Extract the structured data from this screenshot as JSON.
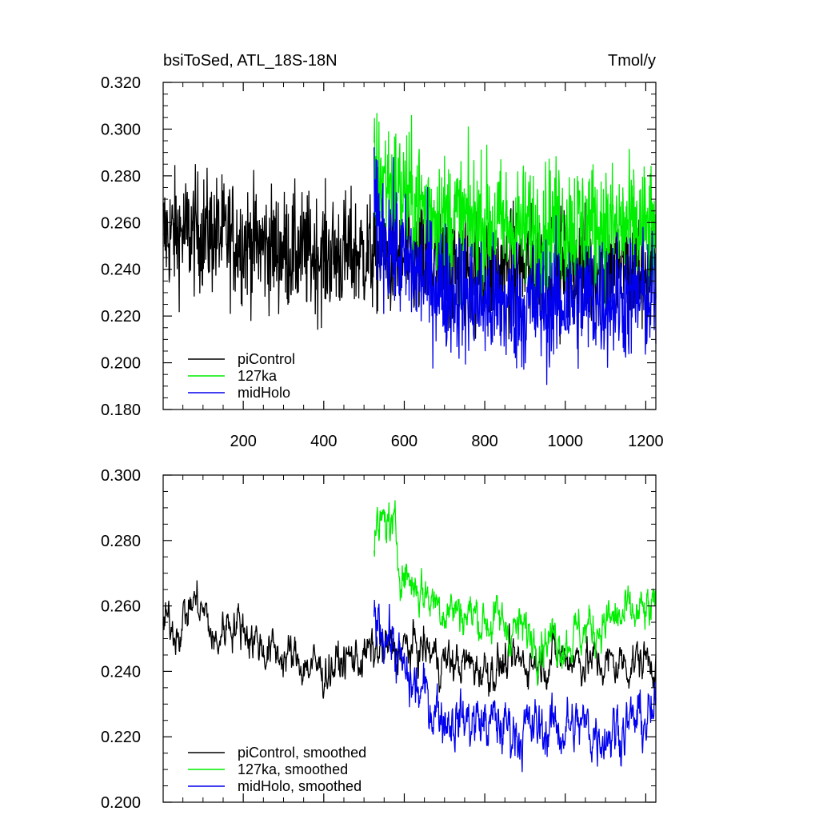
{
  "chart_data": [
    {
      "type": "line",
      "title": "bsiToSed, ATL_18S-18N",
      "units": "Tmol/y",
      "xlim": [
        1,
        1225
      ],
      "ylim": [
        0.18,
        0.32
      ],
      "yticks": [
        "0.180",
        "0.200",
        "0.220",
        "0.240",
        "0.260",
        "0.280",
        "0.300",
        "0.320"
      ],
      "xticks": [
        "200",
        "400",
        "600",
        "800",
        "1000",
        "1200"
      ],
      "legend_position": "lower-left",
      "series": [
        {
          "name": "piControl",
          "color": "#000000",
          "x_range": [
            1,
            1225
          ],
          "mean": [
            [
              1,
              0.255
            ],
            [
              100,
              0.256
            ],
            [
              200,
              0.252
            ],
            [
              300,
              0.248
            ],
            [
              400,
              0.246
            ],
            [
              530,
              0.247
            ],
            [
              700,
              0.24
            ],
            [
              900,
              0.24
            ],
            [
              1100,
              0.24
            ],
            [
              1225,
              0.24
            ]
          ],
          "noise": 0.013
        },
        {
          "name": "127ka",
          "color": "#00ee00",
          "x_range": [
            525,
            1225
          ],
          "mean": [
            [
              525,
              0.282
            ],
            [
              600,
              0.272
            ],
            [
              700,
              0.262
            ],
            [
              800,
              0.26
            ],
            [
              900,
              0.257
            ],
            [
              1000,
              0.26
            ],
            [
              1100,
              0.258
            ],
            [
              1225,
              0.257
            ]
          ],
          "noise": 0.014
        },
        {
          "name": "midHolo",
          "color": "#0000ee",
          "x_range": [
            525,
            1225
          ],
          "mean": [
            [
              525,
              0.262
            ],
            [
              600,
              0.242
            ],
            [
              700,
              0.232
            ],
            [
              800,
              0.226
            ],
            [
              900,
              0.224
            ],
            [
              1000,
              0.226
            ],
            [
              1100,
              0.228
            ],
            [
              1225,
              0.228
            ]
          ],
          "noise": 0.014
        }
      ]
    },
    {
      "type": "line",
      "xlim": [
        1,
        1225
      ],
      "ylim": [
        0.2,
        0.3
      ],
      "yticks": [
        "0.200",
        "0.220",
        "0.240",
        "0.260",
        "0.280",
        "0.300"
      ],
      "legend_position": "lower-left",
      "series": [
        {
          "name": "piControl, smoothed",
          "color": "#000000",
          "x_range": [
            1,
            1225
          ],
          "mean": [
            [
              1,
              0.254
            ],
            [
              40,
              0.254
            ],
            [
              80,
              0.262
            ],
            [
              110,
              0.256
            ],
            [
              130,
              0.247
            ],
            [
              160,
              0.256
            ],
            [
              200,
              0.254
            ],
            [
              250,
              0.247
            ],
            [
              300,
              0.245
            ],
            [
              400,
              0.24
            ],
            [
              450,
              0.243
            ],
            [
              530,
              0.246
            ],
            [
              650,
              0.247
            ],
            [
              700,
              0.243
            ],
            [
              800,
              0.241
            ],
            [
              900,
              0.243
            ],
            [
              1000,
              0.245
            ],
            [
              1100,
              0.242
            ],
            [
              1225,
              0.244
            ]
          ],
          "noise": 0.0045
        },
        {
          "name": "127ka, smoothed",
          "color": "#00ee00",
          "x_range": [
            525,
            1225
          ],
          "mean": [
            [
              525,
              0.28
            ],
            [
              560,
              0.287
            ],
            [
              600,
              0.27
            ],
            [
              650,
              0.264
            ],
            [
              700,
              0.26
            ],
            [
              800,
              0.256
            ],
            [
              900,
              0.252
            ],
            [
              1000,
              0.25
            ],
            [
              1100,
              0.255
            ],
            [
              1225,
              0.258
            ]
          ],
          "noise": 0.005
        },
        {
          "name": "midHolo, smoothed",
          "color": "#0000ee",
          "x_range": [
            525,
            1225
          ],
          "mean": [
            [
              525,
              0.258
            ],
            [
              560,
              0.252
            ],
            [
              600,
              0.238
            ],
            [
              650,
              0.232
            ],
            [
              700,
              0.227
            ],
            [
              800,
              0.224
            ],
            [
              900,
              0.222
            ],
            [
              1000,
              0.223
            ],
            [
              1100,
              0.222
            ],
            [
              1225,
              0.226
            ]
          ],
          "noise": 0.006
        }
      ]
    }
  ]
}
